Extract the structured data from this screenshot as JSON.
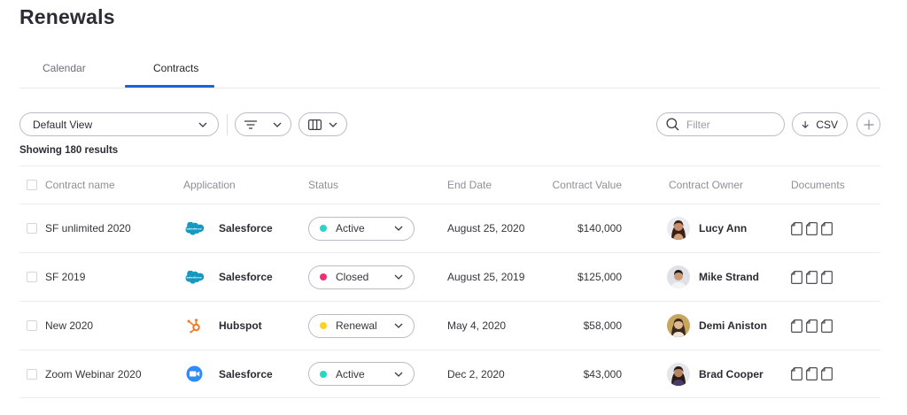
{
  "page": {
    "title": "Renewals"
  },
  "tabs": [
    {
      "label": "Calendar",
      "active": false
    },
    {
      "label": "Contracts",
      "active": true
    }
  ],
  "toolbar": {
    "view_select": "Default View",
    "filter_icon": "filter-lines-icon",
    "columns_icon": "columns-icon",
    "search_placeholder": "Filter",
    "csv_label": "CSV",
    "add_icon": "plus-icon"
  },
  "results_text": "Showing 180 results",
  "table": {
    "columns": [
      "Contract name",
      "Application",
      "Status",
      "End Date",
      "Contract Value",
      "Contract Owner",
      "Documents"
    ],
    "rows": [
      {
        "name": "SF unlimited 2020",
        "app": "Salesforce",
        "app_icon": "salesforce-icon",
        "status": "Active",
        "status_color": "#2ed3c6",
        "end": "August 25, 2020",
        "value": "$140,000",
        "owner": "Lucy Ann"
      },
      {
        "name": "SF 2019",
        "app": "Salesforce",
        "app_icon": "salesforce-icon",
        "status": "Closed",
        "status_color": "#ef2f74",
        "end": "August 25, 2019",
        "value": "$125,000",
        "owner": "Mike Strand"
      },
      {
        "name": "New 2020",
        "app": "Hubspot",
        "app_icon": "hubspot-icon",
        "status": "Renewal",
        "status_color": "#ffd21f",
        "end": "May 4, 2020",
        "value": "$58,000",
        "owner": "Demi Aniston"
      },
      {
        "name": "Zoom Webinar 2020",
        "app": "Salesforce",
        "app_icon": "zoom-icon",
        "status": "Active",
        "status_color": "#2ed3c6",
        "end": "Dec 2, 2020",
        "value": "$43,000",
        "owner": "Brad Cooper"
      }
    ]
  },
  "colors": {
    "accent": "#1e63d6",
    "salesforce": "#1798c1",
    "hubspot": "#f57722",
    "zoom": "#2d8cff"
  }
}
